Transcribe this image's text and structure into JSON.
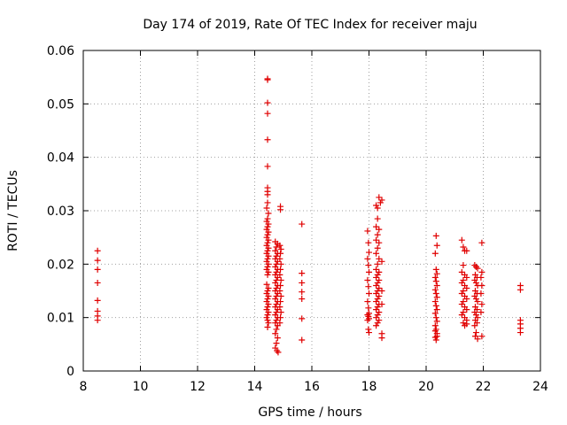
{
  "chart_data": {
    "type": "scatter",
    "title": "Day 174 of 2019, Rate Of TEC Index for receiver maju",
    "xlabel": "GPS time / hours",
    "ylabel": "ROTI / TECUs",
    "xlim": [
      8,
      24
    ],
    "ylim": [
      0,
      0.06
    ],
    "xticks": [
      8,
      10,
      12,
      14,
      16,
      18,
      20,
      22,
      24
    ],
    "xtick_labels": [
      "8",
      "10",
      "12",
      "14",
      "16",
      "18",
      "20",
      "22",
      "24"
    ],
    "yticks": [
      0,
      0.01,
      0.02,
      0.03,
      0.04,
      0.05,
      0.06
    ],
    "ytick_labels": [
      "0",
      "0.01",
      "0.02",
      "0.03",
      "0.04",
      "0.05",
      "0.06"
    ],
    "grid": true,
    "legend": "none",
    "marker": "plus",
    "color": "#e00000",
    "series": [
      {
        "name": "ROTI",
        "points": [
          [
            8.5,
            0.0225
          ],
          [
            8.5,
            0.0207
          ],
          [
            8.5,
            0.019
          ],
          [
            8.5,
            0.0165
          ],
          [
            8.5,
            0.0132
          ],
          [
            8.5,
            0.0112
          ],
          [
            8.5,
            0.0103
          ],
          [
            8.5,
            0.0095
          ],
          [
            14.45,
            0.0547
          ],
          [
            14.45,
            0.0545
          ],
          [
            14.45,
            0.0502
          ],
          [
            14.45,
            0.0482
          ],
          [
            14.45,
            0.0433
          ],
          [
            14.45,
            0.0383
          ],
          [
            14.45,
            0.0343
          ],
          [
            14.45,
            0.0336
          ],
          [
            14.45,
            0.033
          ],
          [
            14.45,
            0.0315
          ],
          [
            14.42,
            0.0305
          ],
          [
            14.48,
            0.0295
          ],
          [
            14.45,
            0.0285
          ],
          [
            14.42,
            0.028
          ],
          [
            14.48,
            0.0275
          ],
          [
            14.45,
            0.027
          ],
          [
            14.42,
            0.0265
          ],
          [
            14.48,
            0.026
          ],
          [
            14.45,
            0.0255
          ],
          [
            14.42,
            0.025
          ],
          [
            14.48,
            0.0245
          ],
          [
            14.45,
            0.024
          ],
          [
            14.42,
            0.0235
          ],
          [
            14.48,
            0.023
          ],
          [
            14.45,
            0.0225
          ],
          [
            14.42,
            0.022
          ],
          [
            14.48,
            0.0215
          ],
          [
            14.45,
            0.021
          ],
          [
            14.42,
            0.0205
          ],
          [
            14.48,
            0.02
          ],
          [
            14.45,
            0.0195
          ],
          [
            14.42,
            0.019
          ],
          [
            14.48,
            0.0185
          ],
          [
            14.45,
            0.018
          ],
          [
            14.42,
            0.0162
          ],
          [
            14.48,
            0.0155
          ],
          [
            14.45,
            0.015
          ],
          [
            14.42,
            0.0145
          ],
          [
            14.48,
            0.014
          ],
          [
            14.45,
            0.0135
          ],
          [
            14.42,
            0.013
          ],
          [
            14.48,
            0.0125
          ],
          [
            14.45,
            0.012
          ],
          [
            14.42,
            0.0115
          ],
          [
            14.48,
            0.011
          ],
          [
            14.45,
            0.0105
          ],
          [
            14.42,
            0.01
          ],
          [
            14.45,
            0.0095
          ],
          [
            14.48,
            0.009
          ],
          [
            14.45,
            0.0082
          ],
          [
            14.72,
            0.0242
          ],
          [
            14.8,
            0.0238
          ],
          [
            14.76,
            0.0232
          ],
          [
            14.72,
            0.0225
          ],
          [
            14.8,
            0.022
          ],
          [
            14.76,
            0.0215
          ],
          [
            14.72,
            0.021
          ],
          [
            14.8,
            0.0205
          ],
          [
            14.76,
            0.02
          ],
          [
            14.72,
            0.0195
          ],
          [
            14.8,
            0.019
          ],
          [
            14.76,
            0.0185
          ],
          [
            14.72,
            0.018
          ],
          [
            14.8,
            0.0175
          ],
          [
            14.76,
            0.017
          ],
          [
            14.72,
            0.0165
          ],
          [
            14.8,
            0.016
          ],
          [
            14.76,
            0.0155
          ],
          [
            14.72,
            0.015
          ],
          [
            14.8,
            0.0145
          ],
          [
            14.76,
            0.014
          ],
          [
            14.72,
            0.0135
          ],
          [
            14.8,
            0.013
          ],
          [
            14.76,
            0.0125
          ],
          [
            14.72,
            0.012
          ],
          [
            14.8,
            0.0115
          ],
          [
            14.76,
            0.011
          ],
          [
            14.72,
            0.0105
          ],
          [
            14.8,
            0.01
          ],
          [
            14.76,
            0.0095
          ],
          [
            14.72,
            0.009
          ],
          [
            14.8,
            0.0085
          ],
          [
            14.76,
            0.0078
          ],
          [
            14.72,
            0.007
          ],
          [
            14.8,
            0.0062
          ],
          [
            14.76,
            0.0052
          ],
          [
            14.72,
            0.0043
          ],
          [
            14.78,
            0.0038
          ],
          [
            14.82,
            0.0035
          ],
          [
            14.9,
            0.0308
          ],
          [
            14.9,
            0.0302
          ],
          [
            14.88,
            0.0235
          ],
          [
            14.92,
            0.0228
          ],
          [
            14.9,
            0.022
          ],
          [
            14.88,
            0.021
          ],
          [
            14.92,
            0.02
          ],
          [
            14.9,
            0.019
          ],
          [
            14.88,
            0.018
          ],
          [
            14.92,
            0.017
          ],
          [
            14.9,
            0.016
          ],
          [
            14.88,
            0.015
          ],
          [
            14.92,
            0.014
          ],
          [
            14.9,
            0.013
          ],
          [
            14.88,
            0.012
          ],
          [
            14.92,
            0.011
          ],
          [
            14.9,
            0.01
          ],
          [
            14.88,
            0.009
          ],
          [
            15.65,
            0.0275
          ],
          [
            15.65,
            0.0183
          ],
          [
            15.65,
            0.0165
          ],
          [
            15.65,
            0.0148
          ],
          [
            15.65,
            0.0135
          ],
          [
            15.65,
            0.0098
          ],
          [
            15.65,
            0.0058
          ],
          [
            17.95,
            0.0262
          ],
          [
            17.98,
            0.024
          ],
          [
            18.0,
            0.0222
          ],
          [
            17.95,
            0.021
          ],
          [
            17.98,
            0.0198
          ],
          [
            18.0,
            0.0185
          ],
          [
            17.95,
            0.017
          ],
          [
            17.98,
            0.0158
          ],
          [
            18.0,
            0.0145
          ],
          [
            17.95,
            0.013
          ],
          [
            17.98,
            0.0118
          ],
          [
            18.0,
            0.0108
          ],
          [
            17.95,
            0.0105
          ],
          [
            17.98,
            0.0102
          ],
          [
            18.0,
            0.0098
          ],
          [
            17.95,
            0.0095
          ],
          [
            17.98,
            0.0078
          ],
          [
            18.0,
            0.0072
          ],
          [
            18.25,
            0.031
          ],
          [
            18.3,
            0.0305
          ],
          [
            18.35,
            0.0325
          ],
          [
            18.45,
            0.032
          ],
          [
            18.4,
            0.0315
          ],
          [
            18.3,
            0.0285
          ],
          [
            18.25,
            0.027
          ],
          [
            18.35,
            0.0265
          ],
          [
            18.3,
            0.0255
          ],
          [
            18.25,
            0.0245
          ],
          [
            18.35,
            0.024
          ],
          [
            18.3,
            0.023
          ],
          [
            18.25,
            0.022
          ],
          [
            18.35,
            0.021
          ],
          [
            18.3,
            0.02
          ],
          [
            18.25,
            0.019
          ],
          [
            18.35,
            0.0185
          ],
          [
            18.3,
            0.018
          ],
          [
            18.25,
            0.0175
          ],
          [
            18.35,
            0.017
          ],
          [
            18.3,
            0.0165
          ],
          [
            18.25,
            0.016
          ],
          [
            18.35,
            0.0155
          ],
          [
            18.3,
            0.015
          ],
          [
            18.25,
            0.0145
          ],
          [
            18.35,
            0.014
          ],
          [
            18.3,
            0.0135
          ],
          [
            18.25,
            0.013
          ],
          [
            18.35,
            0.0125
          ],
          [
            18.3,
            0.012
          ],
          [
            18.25,
            0.0115
          ],
          [
            18.35,
            0.011
          ],
          [
            18.3,
            0.0105
          ],
          [
            18.25,
            0.01
          ],
          [
            18.35,
            0.0095
          ],
          [
            18.3,
            0.009
          ],
          [
            18.25,
            0.0085
          ],
          [
            18.45,
            0.0205
          ],
          [
            18.45,
            0.015
          ],
          [
            18.45,
            0.0125
          ],
          [
            18.45,
            0.007
          ],
          [
            18.45,
            0.0062
          ],
          [
            20.35,
            0.0253
          ],
          [
            20.38,
            0.0235
          ],
          [
            20.32,
            0.022
          ],
          [
            20.35,
            0.019
          ],
          [
            20.38,
            0.0182
          ],
          [
            20.32,
            0.0175
          ],
          [
            20.35,
            0.0168
          ],
          [
            20.38,
            0.016
          ],
          [
            20.32,
            0.0152
          ],
          [
            20.35,
            0.0145
          ],
          [
            20.38,
            0.0138
          ],
          [
            20.32,
            0.013
          ],
          [
            20.35,
            0.0122
          ],
          [
            20.38,
            0.0115
          ],
          [
            20.32,
            0.0108
          ],
          [
            20.35,
            0.01
          ],
          [
            20.38,
            0.0093
          ],
          [
            20.32,
            0.0085
          ],
          [
            20.35,
            0.0078
          ],
          [
            20.38,
            0.007
          ],
          [
            20.32,
            0.0063
          ],
          [
            20.35,
            0.0058
          ],
          [
            20.38,
            0.0065
          ],
          [
            20.32,
            0.0075
          ],
          [
            21.25,
            0.0245
          ],
          [
            21.3,
            0.0232
          ],
          [
            21.35,
            0.0225
          ],
          [
            21.42,
            0.0225
          ],
          [
            21.3,
            0.0198
          ],
          [
            21.25,
            0.0185
          ],
          [
            21.35,
            0.018
          ],
          [
            21.42,
            0.0175
          ],
          [
            21.3,
            0.017
          ],
          [
            21.25,
            0.0165
          ],
          [
            21.35,
            0.016
          ],
          [
            21.42,
            0.0155
          ],
          [
            21.3,
            0.015
          ],
          [
            21.25,
            0.0145
          ],
          [
            21.35,
            0.014
          ],
          [
            21.42,
            0.0135
          ],
          [
            21.3,
            0.013
          ],
          [
            21.25,
            0.0125
          ],
          [
            21.35,
            0.012
          ],
          [
            21.42,
            0.0115
          ],
          [
            21.3,
            0.011
          ],
          [
            21.25,
            0.0105
          ],
          [
            21.35,
            0.01
          ],
          [
            21.42,
            0.0095
          ],
          [
            21.3,
            0.009
          ],
          [
            21.35,
            0.0085
          ],
          [
            21.42,
            0.0088
          ],
          [
            21.7,
            0.0198
          ],
          [
            21.75,
            0.0195
          ],
          [
            21.8,
            0.0192
          ],
          [
            21.72,
            0.018
          ],
          [
            21.78,
            0.0175
          ],
          [
            21.7,
            0.017
          ],
          [
            21.75,
            0.0165
          ],
          [
            21.8,
            0.016
          ],
          [
            21.72,
            0.015
          ],
          [
            21.78,
            0.0145
          ],
          [
            21.7,
            0.014
          ],
          [
            21.75,
            0.0135
          ],
          [
            21.8,
            0.013
          ],
          [
            21.72,
            0.012
          ],
          [
            21.78,
            0.0115
          ],
          [
            21.7,
            0.011
          ],
          [
            21.75,
            0.0105
          ],
          [
            21.8,
            0.01
          ],
          [
            21.72,
            0.0095
          ],
          [
            21.78,
            0.009
          ],
          [
            21.7,
            0.0085
          ],
          [
            21.75,
            0.0072
          ],
          [
            21.72,
            0.0065
          ],
          [
            21.8,
            0.006
          ],
          [
            21.95,
            0.024
          ],
          [
            21.95,
            0.0185
          ],
          [
            21.92,
            0.0175
          ],
          [
            21.95,
            0.016
          ],
          [
            21.92,
            0.0145
          ],
          [
            21.95,
            0.0125
          ],
          [
            21.92,
            0.011
          ],
          [
            21.95,
            0.0065
          ],
          [
            23.3,
            0.016
          ],
          [
            23.3,
            0.0152
          ],
          [
            23.3,
            0.0095
          ],
          [
            23.3,
            0.0088
          ],
          [
            23.3,
            0.008
          ],
          [
            23.3,
            0.0072
          ]
        ]
      }
    ]
  }
}
